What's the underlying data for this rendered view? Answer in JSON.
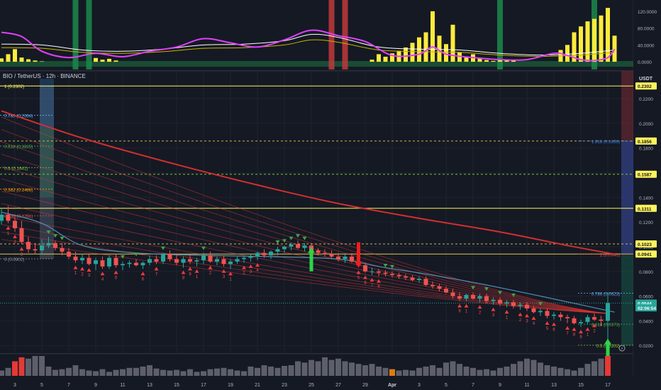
{
  "header": {
    "symbol_title": "BIO / TetherUS · 12h · BINANCE",
    "currency": "USDT"
  },
  "chart_data": {
    "type": "candlestick",
    "colors": {
      "up": "#26a69a",
      "down": "#ef5350",
      "volume_up": "#5d606b",
      "volume_highlight_red": "#e53935",
      "volume_highlight_orange": "#e07b13",
      "osc_histogram": "#ffeb3b",
      "osc_fast": "#e040fb",
      "osc_slow": "#ffffff",
      "osc_slow2": "#c7b400",
      "ribbon": "#e53935",
      "ma_main": "#d32f2f",
      "ma_blue": "#4f8fb4",
      "fib_yellow": "#fff35c",
      "fib_green": "#7ec73a"
    },
    "price_axis": {
      "ylim": [
        0.0144,
        0.2424
      ],
      "ticks": [
        0.22,
        0.2,
        0.18,
        0.16,
        0.14,
        0.12,
        0.1,
        0.08,
        0.06,
        0.04,
        0.02
      ],
      "tick_labels": [
        "0.2200",
        "0.2000",
        "0.1800",
        "0.1600",
        "0.1400",
        "0.1200",
        "0.1000",
        "0.0800",
        "0.0600",
        "0.0400",
        "0.0200"
      ]
    },
    "price_tags": [
      {
        "label": "0.2302",
        "value": 0.2302,
        "style": "yellow"
      },
      {
        "label": "0.1856",
        "value": 0.1856,
        "style": "yellow"
      },
      {
        "label": "0.1587",
        "value": 0.1587,
        "style": "yellow"
      },
      {
        "label": "0.1311",
        "value": 0.1311,
        "style": "yellow"
      },
      {
        "label": "0.1023",
        "value": 0.1023,
        "style": "yellow"
      },
      {
        "label": "0.0941",
        "value": 0.0941,
        "style": "yellow"
      },
      {
        "label": "0.0544",
        "value": 0.0544,
        "style": "last"
      },
      {
        "label": "02:06:54",
        "value": 0.0505,
        "style": "countdown"
      }
    ],
    "fib_levels_left": [
      {
        "label": "1 (0.2302)",
        "value": 0.2302,
        "color": "#fff35c"
      },
      {
        "label": "0.786 (0.2064)",
        "value": 0.2064,
        "color": "#64b5f6"
      },
      {
        "label": "0.618 (0.1815)",
        "value": 0.1815,
        "color": "#4caf50"
      },
      {
        "label": "0.5 (0.1641)",
        "value": 0.1641,
        "color": "#7ec73a"
      },
      {
        "label": "0.382 (0.1466)",
        "value": 0.1466,
        "color": "#ff9800"
      },
      {
        "label": "0.236 (0.1251)",
        "value": 0.1251,
        "color": "#ef5350"
      },
      {
        "label": "0 (0.0902)",
        "value": 0.0902,
        "color": "#9598a1"
      }
    ],
    "fib_levels_right": [
      {
        "label": "1.618 (0.1856)",
        "value": 0.1856,
        "color": "#3d7ee0"
      },
      {
        "label": "1 (0.0940)",
        "value": 0.094,
        "color": "#ef5350"
      },
      {
        "label": "0.786 (0.0623)",
        "value": 0.0623,
        "color": "#64b5f6"
      },
      {
        "label": "0.618 (0.0373)",
        "value": 0.0373,
        "color": "#4caf50"
      },
      {
        "label": "0.5 (0.0202)",
        "value": 0.0202,
        "color": "#7ec73a"
      }
    ],
    "x_axis": {
      "labels": [
        "3",
        "5",
        "7",
        "9",
        "11",
        "13",
        "15",
        "17",
        "19",
        "21",
        "23",
        "25",
        "27",
        "29",
        "Apr",
        "3",
        "5",
        "7",
        "9",
        "11",
        "13",
        "15",
        "17"
      ],
      "bold": [
        "Apr"
      ],
      "candle_index": [
        2,
        6,
        10,
        14,
        18,
        22,
        26,
        30,
        34,
        38,
        42,
        46,
        50,
        54,
        58,
        62,
        66,
        70,
        74,
        78,
        82,
        86,
        90
      ]
    },
    "candles": [
      [
        0.121,
        0.131,
        0.118,
        0.126
      ],
      [
        0.126,
        0.133,
        0.119,
        0.121
      ],
      [
        0.121,
        0.126,
        0.112,
        0.115
      ],
      [
        0.115,
        0.121,
        0.102,
        0.104
      ],
      [
        0.104,
        0.108,
        0.095,
        0.098
      ],
      [
        0.098,
        0.103,
        0.094,
        0.097
      ],
      [
        0.097,
        0.106,
        0.094,
        0.101
      ],
      [
        0.101,
        0.108,
        0.099,
        0.103
      ],
      [
        0.103,
        0.105,
        0.097,
        0.099
      ],
      [
        0.099,
        0.103,
        0.093,
        0.096
      ],
      [
        0.096,
        0.099,
        0.09,
        0.092
      ],
      [
        0.092,
        0.096,
        0.087,
        0.089
      ],
      [
        0.089,
        0.094,
        0.086,
        0.091
      ],
      [
        0.091,
        0.094,
        0.085,
        0.086
      ],
      [
        0.086,
        0.091,
        0.081,
        0.089
      ],
      [
        0.089,
        0.092,
        0.082,
        0.084
      ],
      [
        0.084,
        0.093,
        0.082,
        0.091
      ],
      [
        0.091,
        0.094,
        0.083,
        0.085
      ],
      [
        0.085,
        0.088,
        0.081,
        0.086
      ],
      [
        0.086,
        0.089,
        0.083,
        0.087
      ],
      [
        0.087,
        0.09,
        0.084,
        0.085
      ],
      [
        0.085,
        0.088,
        0.082,
        0.087
      ],
      [
        0.087,
        0.093,
        0.085,
        0.09
      ],
      [
        0.09,
        0.093,
        0.086,
        0.088
      ],
      [
        0.088,
        0.095,
        0.086,
        0.094
      ],
      [
        0.094,
        0.097,
        0.088,
        0.09
      ],
      [
        0.09,
        0.094,
        0.085,
        0.087
      ],
      [
        0.087,
        0.092,
        0.083,
        0.09
      ],
      [
        0.09,
        0.094,
        0.086,
        0.088
      ],
      [
        0.088,
        0.091,
        0.084,
        0.089
      ],
      [
        0.089,
        0.095,
        0.086,
        0.093
      ],
      [
        0.093,
        0.096,
        0.087,
        0.088
      ],
      [
        0.088,
        0.092,
        0.085,
        0.09
      ],
      [
        0.09,
        0.093,
        0.084,
        0.086
      ],
      [
        0.086,
        0.09,
        0.082,
        0.088
      ],
      [
        0.088,
        0.092,
        0.086,
        0.09
      ],
      [
        0.09,
        0.093,
        0.087,
        0.091
      ],
      [
        0.091,
        0.094,
        0.088,
        0.092
      ],
      [
        0.092,
        0.096,
        0.089,
        0.095
      ],
      [
        0.095,
        0.098,
        0.091,
        0.093
      ],
      [
        0.093,
        0.097,
        0.09,
        0.096
      ],
      [
        0.096,
        0.1,
        0.093,
        0.098
      ],
      [
        0.098,
        0.101,
        0.095,
        0.1
      ],
      [
        0.1,
        0.103,
        0.097,
        0.102
      ],
      [
        0.102,
        0.105,
        0.098,
        0.099
      ],
      [
        0.099,
        0.103,
        0.096,
        0.101
      ],
      [
        0.101,
        0.102,
        0.095,
        0.097
      ],
      [
        0.097,
        0.099,
        0.093,
        0.095
      ],
      [
        0.095,
        0.098,
        0.092,
        0.094
      ],
      [
        0.094,
        0.097,
        0.09,
        0.092
      ],
      [
        0.092,
        0.095,
        0.088,
        0.09
      ],
      [
        0.09,
        0.094,
        0.087,
        0.092
      ],
      [
        0.092,
        0.095,
        0.087,
        0.088
      ],
      [
        0.088,
        0.091,
        0.083,
        0.085
      ],
      [
        0.085,
        0.087,
        0.079,
        0.08
      ],
      [
        0.08,
        0.083,
        0.077,
        0.08
      ],
      [
        0.08,
        0.082,
        0.076,
        0.079
      ],
      [
        0.079,
        0.081,
        0.076,
        0.078
      ],
      [
        0.078,
        0.08,
        0.075,
        0.077
      ],
      [
        0.077,
        0.079,
        0.074,
        0.076
      ],
      [
        0.076,
        0.078,
        0.073,
        0.075
      ],
      [
        0.075,
        0.077,
        0.072,
        0.073
      ],
      [
        0.073,
        0.076,
        0.071,
        0.074
      ],
      [
        0.074,
        0.076,
        0.068,
        0.069
      ],
      [
        0.069,
        0.072,
        0.066,
        0.068
      ],
      [
        0.068,
        0.07,
        0.064,
        0.066
      ],
      [
        0.066,
        0.068,
        0.062,
        0.063
      ],
      [
        0.063,
        0.066,
        0.058,
        0.06
      ],
      [
        0.06,
        0.063,
        0.056,
        0.058
      ],
      [
        0.058,
        0.062,
        0.056,
        0.061
      ],
      [
        0.061,
        0.063,
        0.057,
        0.058
      ],
      [
        0.058,
        0.062,
        0.055,
        0.06
      ],
      [
        0.06,
        0.062,
        0.054,
        0.056
      ],
      [
        0.056,
        0.059,
        0.053,
        0.057
      ],
      [
        0.057,
        0.059,
        0.052,
        0.054
      ],
      [
        0.054,
        0.057,
        0.051,
        0.055
      ],
      [
        0.055,
        0.057,
        0.05,
        0.052
      ],
      [
        0.052,
        0.055,
        0.049,
        0.053
      ],
      [
        0.053,
        0.055,
        0.048,
        0.05
      ],
      [
        0.05,
        0.052,
        0.046,
        0.047
      ],
      [
        0.047,
        0.05,
        0.044,
        0.048
      ],
      [
        0.048,
        0.05,
        0.042,
        0.044
      ],
      [
        0.044,
        0.047,
        0.041,
        0.045
      ],
      [
        0.045,
        0.047,
        0.04,
        0.043
      ],
      [
        0.043,
        0.045,
        0.038,
        0.042
      ],
      [
        0.042,
        0.044,
        0.037,
        0.038
      ],
      [
        0.038,
        0.041,
        0.035,
        0.039
      ],
      [
        0.039,
        0.045,
        0.037,
        0.043
      ],
      [
        0.043,
        0.046,
        0.04,
        0.041
      ],
      [
        0.041,
        0.044,
        0.036,
        0.04
      ],
      [
        0.04,
        0.063,
        0.021,
        0.0544
      ]
    ],
    "ma_main": [
      [
        0,
        0.21
      ],
      [
        12,
        0.188
      ],
      [
        25,
        0.168
      ],
      [
        38,
        0.15
      ],
      [
        50,
        0.135
      ],
      [
        62,
        0.123
      ],
      [
        74,
        0.112
      ],
      [
        84,
        0.101
      ],
      [
        91,
        0.094
      ]
    ],
    "ma_blue": [
      [
        0,
        0.128
      ],
      [
        6,
        0.119
      ],
      [
        12,
        0.101
      ],
      [
        20,
        0.095
      ],
      [
        30,
        0.093
      ],
      [
        40,
        0.092
      ],
      [
        50,
        0.09
      ],
      [
        56,
        0.084
      ],
      [
        64,
        0.077
      ],
      [
        72,
        0.069
      ],
      [
        80,
        0.06
      ],
      [
        86,
        0.053
      ],
      [
        91,
        0.047
      ]
    ],
    "ribbon": {
      "start_values": [
        0.205,
        0.195,
        0.185,
        0.175,
        0.165,
        0.155,
        0.145,
        0.135,
        0.125,
        0.118,
        0.112,
        0.106
      ],
      "end_value": 0.046
    },
    "signals": {
      "big_up_arrows": [
        46,
        90
      ],
      "big_down_arrows": [
        53
      ],
      "up_triangles_idx": [
        1,
        2,
        3,
        11,
        12,
        13,
        15,
        17,
        21,
        23,
        27,
        28,
        29,
        31,
        33,
        34,
        36,
        37,
        38,
        53,
        54,
        55,
        56,
        68,
        69,
        71,
        73,
        75,
        77,
        78,
        79,
        81,
        82,
        84,
        85,
        86,
        87,
        88
      ],
      "down_triangles_idx": [
        7,
        8,
        9,
        18,
        20,
        24,
        30,
        41,
        42,
        43,
        44,
        45,
        57,
        58,
        70,
        72,
        74,
        76,
        80
      ],
      "counts": [
        "1",
        "2",
        "3",
        "1",
        "2",
        "3",
        "4",
        "5",
        "6",
        "7",
        "8",
        "9"
      ]
    },
    "osc_axis": {
      "ylim": [
        -15000,
        140000
      ],
      "ticks": [
        120000,
        80000,
        40000,
        0
      ],
      "tick_labels": [
        "120.0000",
        "80.0000",
        "40.0000",
        "0.0000"
      ]
    },
    "osc_histogram": [
      8000,
      18000,
      30000,
      10000,
      6000,
      3000,
      1000,
      0,
      0,
      0,
      0,
      0,
      0,
      0,
      9000,
      5000,
      7000,
      3000,
      0,
      0,
      0,
      0,
      0,
      0,
      0,
      0,
      0,
      0,
      0,
      0,
      0,
      0,
      0,
      0,
      0,
      0,
      0,
      0,
      0,
      0,
      0,
      0,
      0,
      0,
      0,
      0,
      0,
      0,
      0,
      0,
      0,
      0,
      0,
      0,
      0,
      5000,
      18000,
      12000,
      20000,
      26000,
      34000,
      45000,
      58000,
      70000,
      120000,
      62000,
      42000,
      88000,
      22000,
      10000,
      18000,
      8000,
      4000,
      2000,
      5000,
      6000,
      3000,
      0,
      0,
      0,
      0,
      0,
      0,
      28000,
      40000,
      70000,
      84000,
      96000,
      102000,
      110000,
      128000,
      62000
    ],
    "osc_fast": [
      [
        0,
        70000
      ],
      [
        3,
        60000
      ],
      [
        6,
        25000
      ],
      [
        10,
        10000
      ],
      [
        14,
        20000
      ],
      [
        18,
        12000
      ],
      [
        22,
        25000
      ],
      [
        26,
        35000
      ],
      [
        30,
        55000
      ],
      [
        34,
        45000
      ],
      [
        38,
        35000
      ],
      [
        42,
        52000
      ],
      [
        46,
        75000
      ],
      [
        50,
        62000
      ],
      [
        54,
        48000
      ],
      [
        58,
        15000
      ],
      [
        62,
        18000
      ],
      [
        64,
        35000
      ],
      [
        66,
        18000
      ],
      [
        70,
        10000
      ],
      [
        74,
        5000
      ],
      [
        78,
        5000
      ],
      [
        82,
        20000
      ],
      [
        84,
        15000
      ],
      [
        86,
        5000
      ],
      [
        88,
        3000
      ],
      [
        90,
        10000
      ],
      [
        91,
        30000
      ]
    ],
    "osc_slow": [
      [
        0,
        42000
      ],
      [
        6,
        40000
      ],
      [
        12,
        28000
      ],
      [
        18,
        25000
      ],
      [
        24,
        30000
      ],
      [
        30,
        40000
      ],
      [
        36,
        42000
      ],
      [
        42,
        50000
      ],
      [
        46,
        65000
      ],
      [
        50,
        58000
      ],
      [
        56,
        35000
      ],
      [
        62,
        30000
      ],
      [
        68,
        28000
      ],
      [
        74,
        20000
      ],
      [
        80,
        16000
      ],
      [
        86,
        20000
      ],
      [
        91,
        28000
      ]
    ],
    "volume": [
      8,
      12,
      22,
      28,
      26,
      30,
      30,
      14,
      9,
      10,
      12,
      16,
      10,
      8,
      7,
      10,
      6,
      9,
      10,
      12,
      12,
      14,
      16,
      11,
      9,
      8,
      9,
      7,
      10,
      6,
      7,
      10,
      11,
      12,
      10,
      8,
      7,
      14,
      12,
      16,
      14,
      12,
      15,
      16,
      22,
      20,
      24,
      22,
      28,
      24,
      26,
      22,
      20,
      18,
      16,
      18,
      14,
      12,
      10,
      8,
      9,
      8,
      12,
      14,
      16,
      12,
      20,
      22,
      18,
      14,
      12,
      9,
      10,
      8,
      12,
      14,
      18,
      22,
      26,
      24,
      20,
      16,
      14,
      12,
      10,
      8,
      12,
      18,
      22,
      26,
      30
    ],
    "volume_highlight_red": [
      2,
      3,
      90
    ],
    "volume_highlight_orange": [
      58
    ],
    "signal_bars": [
      {
        "idx": 11,
        "color": "#1b8a4a"
      },
      {
        "idx": 13,
        "color": "#1b8a4a"
      },
      {
        "idx": 49,
        "color": "#c0393b"
      },
      {
        "idx": 51,
        "color": "#c0393b"
      },
      {
        "idx": 74,
        "color": "#1b8a4a"
      },
      {
        "idx": 88,
        "color": "#1b8a4a"
      }
    ]
  }
}
